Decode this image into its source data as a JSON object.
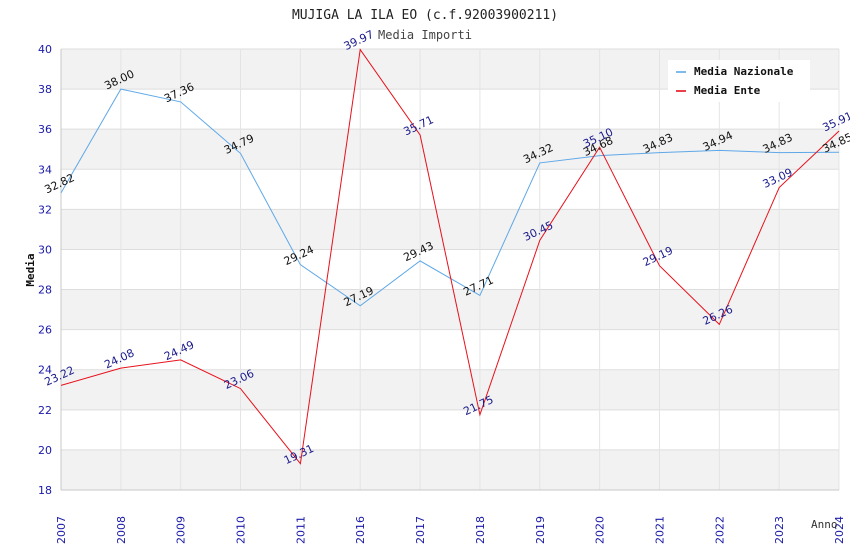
{
  "chart_data": {
    "type": "line",
    "title": "MUJIGA LA ILA EO (c.f.92003900211)",
    "subtitle": "Media Importi",
    "xlabel": "Anno",
    "ylabel": "Media",
    "ylim": [
      18,
      40
    ],
    "yticks": [
      18,
      20,
      22,
      24,
      26,
      28,
      30,
      32,
      34,
      36,
      38,
      40
    ],
    "categories": [
      "2007",
      "2008",
      "2009",
      "2010",
      "2011",
      "2016",
      "2017",
      "2018",
      "2019",
      "2020",
      "2021",
      "2022",
      "2023",
      "2024"
    ],
    "series": [
      {
        "name": "Media Nazionale",
        "color": "#5fa8e8",
        "label_color": "#111111",
        "values": [
          32.82,
          38.0,
          37.36,
          34.79,
          29.24,
          27.19,
          29.43,
          27.71,
          34.32,
          34.68,
          34.83,
          34.94,
          34.83,
          34.85
        ],
        "labels": [
          "32.82",
          "38.00",
          "37.36",
          "34.79",
          "29.24",
          "27.19",
          "29.43",
          "27.71",
          "34.32",
          "34.68",
          "34.83",
          "34.94",
          "34.83",
          "34.85"
        ]
      },
      {
        "name": "Media Ente",
        "color": "#e8101a",
        "label_color": "#1a1a8c",
        "values": [
          23.22,
          24.08,
          24.49,
          23.06,
          19.31,
          39.97,
          35.71,
          21.75,
          30.45,
          35.1,
          29.19,
          26.26,
          33.09,
          35.91
        ],
        "labels": [
          "23.22",
          "24.08",
          "24.49",
          "23.06",
          "19.31",
          "39.97",
          "35.71",
          "21.75",
          "30.45",
          "35.10",
          "29.19",
          "26.26",
          "33.09",
          "35.91"
        ]
      }
    ],
    "legend_position": "top-right",
    "grid": true
  }
}
